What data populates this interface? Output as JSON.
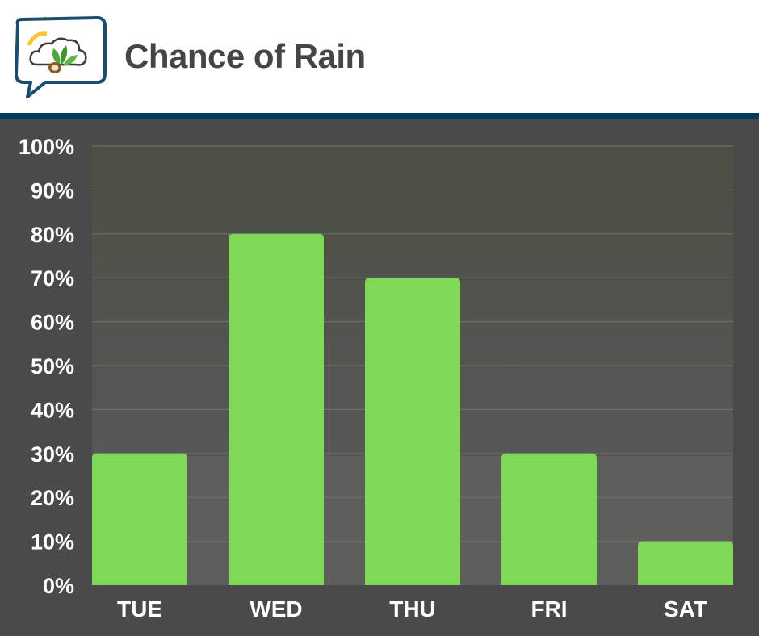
{
  "header": {
    "title": "Chance of Rain",
    "logo_icon": "weather-leaf-chat-icon"
  },
  "colors": {
    "accent_bar": "#7ed957",
    "header_rule": "#073b5c",
    "chart_background": "#4a4a4a",
    "plot_top": "#4d4f44",
    "plot_bottom": "#5e5f5c"
  },
  "chart_data": {
    "type": "bar",
    "title": "Chance of Rain",
    "categories": [
      "TUE",
      "WED",
      "THU",
      "FRI",
      "SAT"
    ],
    "values": [
      30,
      80,
      70,
      30,
      10
    ],
    "ylim": [
      0,
      100
    ],
    "yticks": [
      "0%",
      "10%",
      "20%",
      "30%",
      "40%",
      "50%",
      "60%",
      "70%",
      "80%",
      "90%",
      "100%"
    ],
    "grid": true,
    "legend": "none"
  }
}
